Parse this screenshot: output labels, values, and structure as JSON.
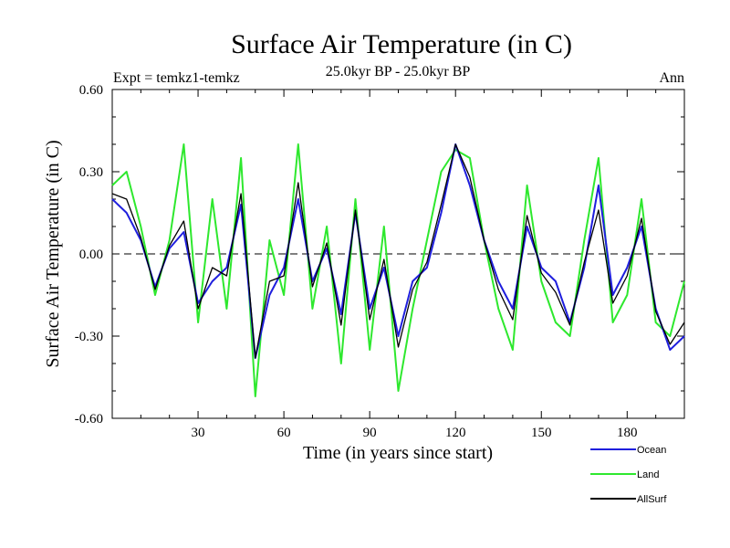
{
  "chart_data": {
    "type": "line",
    "title": "Surface Air Temperature (in C)",
    "subtitle_left": "Expt = temkz1-temkz",
    "subtitle_center": "25.0kyr BP - 25.0kyr BP",
    "subtitle_right": "Ann",
    "xlabel": "Time (in years since start)",
    "ylabel": "Surface Air Temperature (in C)",
    "xlim": [
      0,
      200
    ],
    "ylim": [
      -0.6,
      0.6
    ],
    "xticks": [
      30,
      60,
      90,
      120,
      150,
      180
    ],
    "xtick_labels": [
      "30",
      "60",
      "90",
      "120",
      "150",
      "180"
    ],
    "yticks": [
      -0.6,
      -0.3,
      0.0,
      0.3,
      0.6
    ],
    "ytick_labels": [
      "-0.60",
      "-0.30",
      "0.00",
      "0.30",
      "0.60"
    ],
    "reference_line": 0.0,
    "legend_position": "lower-right",
    "series": [
      {
        "name": "Ocean",
        "color": "#1f1fdd",
        "x": [
          0,
          5,
          10,
          15,
          20,
          25,
          30,
          35,
          40,
          45,
          50,
          55,
          60,
          65,
          70,
          75,
          80,
          85,
          90,
          95,
          100,
          105,
          110,
          115,
          120,
          125,
          130,
          135,
          140,
          145,
          150,
          155,
          160,
          165,
          170,
          175,
          180,
          185,
          190,
          195,
          200
        ],
        "values": [
          0.2,
          0.15,
          0.05,
          -0.12,
          0.02,
          0.08,
          -0.18,
          -0.1,
          -0.05,
          0.18,
          -0.38,
          -0.15,
          -0.05,
          0.2,
          -0.1,
          0.02,
          -0.22,
          0.15,
          -0.2,
          -0.05,
          -0.3,
          -0.1,
          -0.05,
          0.15,
          0.4,
          0.25,
          0.05,
          -0.1,
          -0.2,
          0.1,
          -0.05,
          -0.1,
          -0.25,
          -0.05,
          0.25,
          -0.15,
          -0.05,
          0.1,
          -0.2,
          -0.35,
          -0.3
        ]
      },
      {
        "name": "Land",
        "color": "#2ee82e",
        "x": [
          0,
          5,
          10,
          15,
          20,
          25,
          30,
          35,
          40,
          45,
          50,
          55,
          60,
          65,
          70,
          75,
          80,
          85,
          90,
          95,
          100,
          105,
          110,
          115,
          120,
          125,
          130,
          135,
          140,
          145,
          150,
          155,
          160,
          165,
          170,
          175,
          180,
          185,
          190,
          195,
          200
        ],
        "values": [
          0.25,
          0.3,
          0.1,
          -0.15,
          0.05,
          0.4,
          -0.25,
          0.2,
          -0.2,
          0.35,
          -0.52,
          0.05,
          -0.15,
          0.4,
          -0.2,
          0.1,
          -0.4,
          0.2,
          -0.35,
          0.1,
          -0.5,
          -0.2,
          0.05,
          0.3,
          0.38,
          0.35,
          0.05,
          -0.2,
          -0.35,
          0.25,
          -0.1,
          -0.25,
          -0.3,
          0.05,
          0.35,
          -0.25,
          -0.15,
          0.2,
          -0.25,
          -0.3,
          -0.1
        ]
      },
      {
        "name": "AllSurf",
        "color": "#000000",
        "x": [
          0,
          5,
          10,
          15,
          20,
          25,
          30,
          35,
          40,
          45,
          50,
          55,
          60,
          65,
          70,
          75,
          80,
          85,
          90,
          95,
          100,
          105,
          110,
          115,
          120,
          125,
          130,
          135,
          140,
          145,
          150,
          155,
          160,
          165,
          170,
          175,
          180,
          185,
          190,
          195,
          200
        ],
        "values": [
          0.22,
          0.2,
          0.06,
          -0.13,
          0.03,
          0.12,
          -0.2,
          -0.05,
          -0.08,
          0.22,
          -0.38,
          -0.1,
          -0.08,
          0.26,
          -0.12,
          0.04,
          -0.26,
          0.16,
          -0.24,
          -0.02,
          -0.34,
          -0.13,
          -0.03,
          0.18,
          0.4,
          0.28,
          0.05,
          -0.13,
          -0.24,
          0.14,
          -0.07,
          -0.14,
          -0.26,
          -0.03,
          0.16,
          -0.18,
          -0.08,
          0.13,
          -0.21,
          -0.33,
          -0.25
        ]
      }
    ]
  }
}
